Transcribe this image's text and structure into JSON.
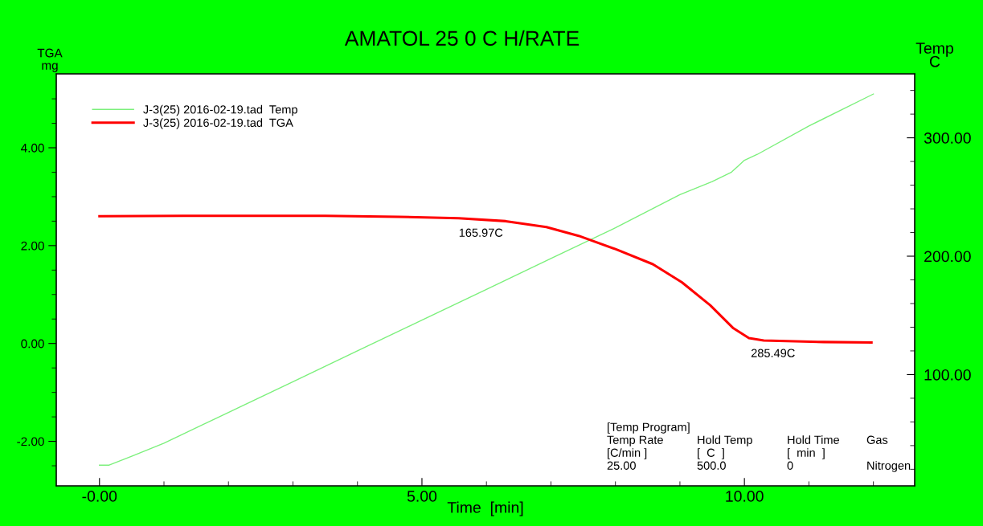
{
  "chart_data": {
    "type": "line",
    "title": "AMATOL 25 0 C H/RATE",
    "xlabel": "Time  [min]",
    "ylabel": "TGA\nmg",
    "y2label": "Temp\nC",
    "xlim": [
      -0.67,
      12.64
    ],
    "ylim": [
      -2.91,
      5.51
    ],
    "y2lim": [
      6,
      354
    ],
    "xticks": [
      {
        "value": 0,
        "label": "-0.00"
      },
      {
        "value": 1,
        "label": null
      },
      {
        "value": 2,
        "label": null
      },
      {
        "value": 3,
        "label": null
      },
      {
        "value": 4,
        "label": null
      },
      {
        "value": 5,
        "label": "5.00"
      },
      {
        "value": 6,
        "label": null
      },
      {
        "value": 7,
        "label": null
      },
      {
        "value": 8,
        "label": null
      },
      {
        "value": 9,
        "label": null
      },
      {
        "value": 10,
        "label": "10.00"
      },
      {
        "value": 11,
        "label": null
      },
      {
        "value": 12,
        "label": null
      }
    ],
    "yticks": [
      {
        "value": -2.5,
        "label": null
      },
      {
        "value": -2,
        "label": "-2.00"
      },
      {
        "value": -1.5,
        "label": null
      },
      {
        "value": -1,
        "label": null
      },
      {
        "value": -0.5,
        "label": null
      },
      {
        "value": 0,
        "label": "0.00"
      },
      {
        "value": 0.5,
        "label": null
      },
      {
        "value": 1,
        "label": null
      },
      {
        "value": 1.5,
        "label": null
      },
      {
        "value": 2,
        "label": "2.00"
      },
      {
        "value": 2.5,
        "label": null
      },
      {
        "value": 3,
        "label": null
      },
      {
        "value": 3.5,
        "label": null
      },
      {
        "value": 4,
        "label": "4.00"
      },
      {
        "value": 4.5,
        "label": null
      },
      {
        "value": 5,
        "label": null
      }
    ],
    "y2ticks": [
      {
        "value": 20,
        "label": null
      },
      {
        "value": 40,
        "label": null
      },
      {
        "value": 60,
        "label": null
      },
      {
        "value": 80,
        "label": null
      },
      {
        "value": 100,
        "label": "100.00"
      },
      {
        "value": 120,
        "label": null
      },
      {
        "value": 140,
        "label": null
      },
      {
        "value": 160,
        "label": null
      },
      {
        "value": 180,
        "label": null
      },
      {
        "value": 200,
        "label": "200.00"
      },
      {
        "value": 220,
        "label": null
      },
      {
        "value": 240,
        "label": null
      },
      {
        "value": 260,
        "label": null
      },
      {
        "value": 280,
        "label": null
      },
      {
        "value": 300,
        "label": "300.00"
      },
      {
        "value": 320,
        "label": null
      },
      {
        "value": 340,
        "label": null
      }
    ],
    "series": [
      {
        "name": "J-3(25) 2016-02-19.tad  Temp",
        "color": "#7cf07c",
        "axis": "y2",
        "x": [
          0,
          0.15,
          0.5,
          1,
          2,
          3,
          4,
          5,
          6,
          7,
          8,
          9,
          9.5,
          9.8,
          9.9,
          10.0,
          10.2,
          11,
          12
        ],
        "values": [
          23.5,
          23.5,
          31,
          42,
          68,
          94,
          120,
          146,
          172,
          198,
          224,
          252,
          263,
          271,
          276,
          281,
          286,
          310,
          337
        ]
      },
      {
        "name": "J-3(25) 2016-02-19.tad  TGA",
        "color": "#ff0000",
        "x": [
          0,
          1.3,
          3.5,
          4.64,
          5.57,
          6.3,
          6.93,
          7.43,
          8.0,
          8.58,
          9.03,
          9.47,
          9.83,
          10.07,
          10.3,
          11.23,
          11.97
        ],
        "values": [
          2.6,
          2.61,
          2.61,
          2.59,
          2.56,
          2.5,
          2.38,
          2.2,
          1.93,
          1.62,
          1.25,
          0.78,
          0.31,
          0.11,
          0.06,
          0.03,
          0.02
        ]
      }
    ],
    "legend": "top left",
    "annotations": [
      {
        "text": "165.97C",
        "x": 5.57,
        "y": 2.56
      },
      {
        "text": "285.49C",
        "x": 10.1,
        "y": 0.1
      },
      "[Temp Program]",
      "Temp Rate",
      "Hold Temp",
      "Hold Time",
      "Gas",
      "[C/min ]",
      "[  C  ]",
      "[  min  ]",
      "25.00",
      "500.0",
      "0",
      "Nitrogen"
    ]
  }
}
